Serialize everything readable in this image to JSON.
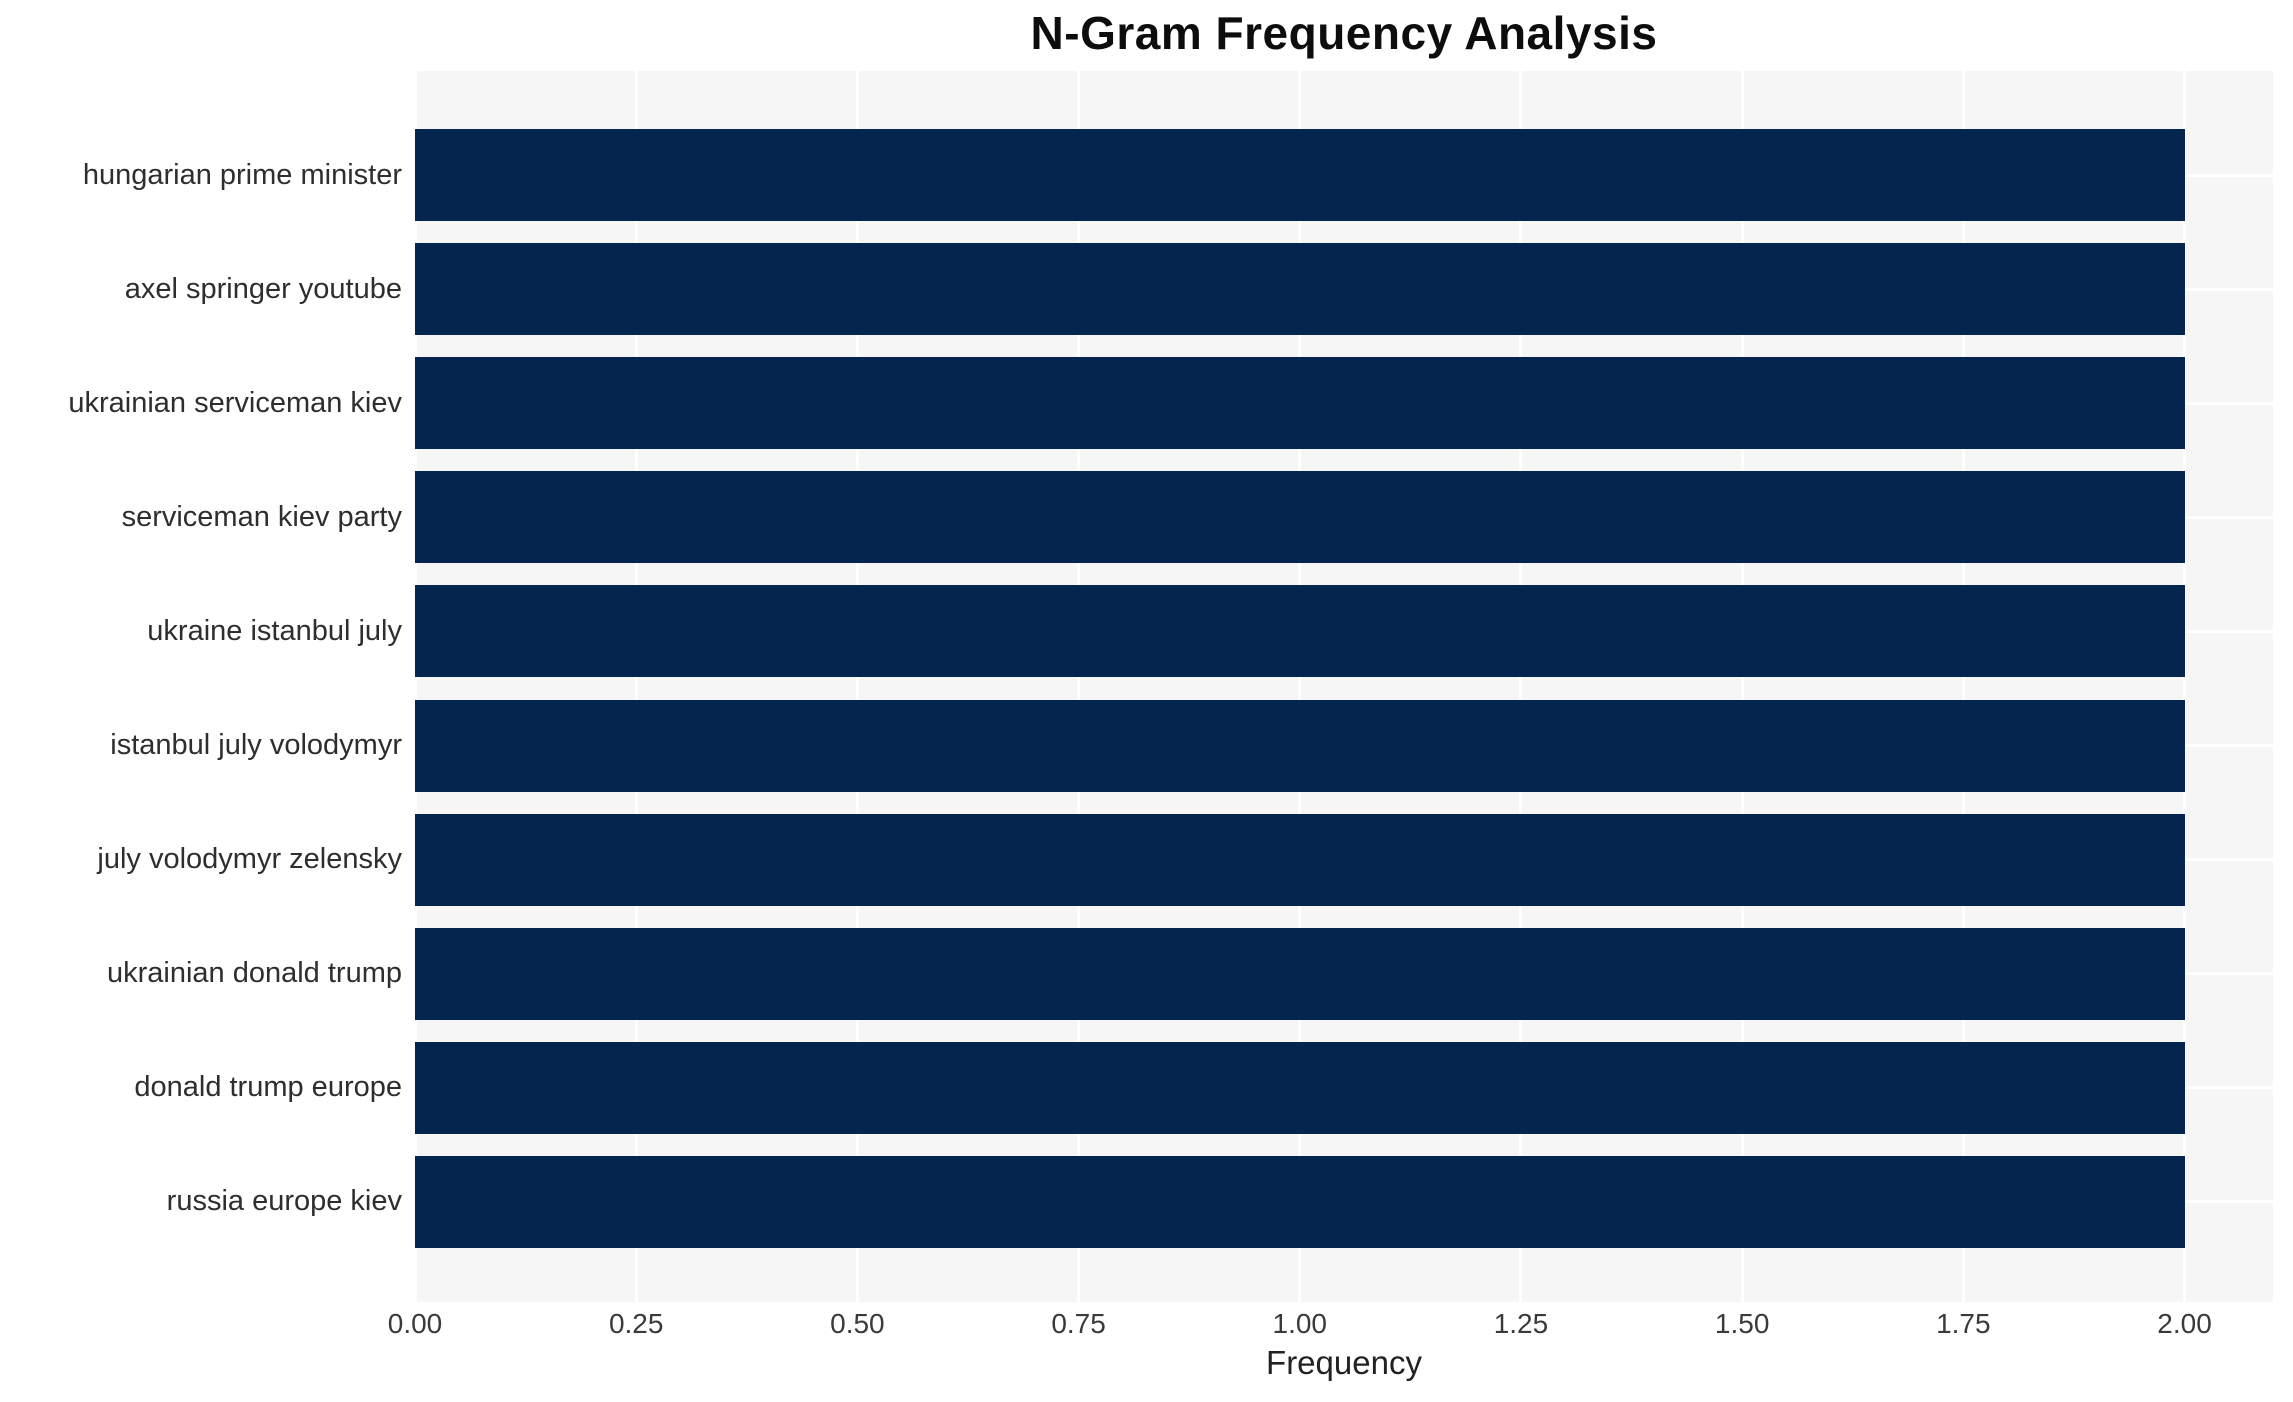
{
  "chart_data": {
    "type": "bar",
    "orientation": "horizontal",
    "title": "N-Gram Frequency Analysis",
    "xlabel": "Frequency",
    "ylabel": "",
    "categories": [
      "hungarian prime minister",
      "axel springer youtube",
      "ukrainian serviceman kiev",
      "serviceman kiev party",
      "ukraine istanbul july",
      "istanbul july volodymyr",
      "july volodymyr zelensky",
      "ukrainian donald trump",
      "donald trump europe",
      "russia europe kiev"
    ],
    "values": [
      2.0,
      2.0,
      2.0,
      2.0,
      2.0,
      2.0,
      2.0,
      2.0,
      2.0,
      2.0
    ],
    "xlim": [
      0,
      2.1
    ],
    "xticks": [
      {
        "value": 0.0,
        "label": "0.00"
      },
      {
        "value": 0.25,
        "label": "0.25"
      },
      {
        "value": 0.5,
        "label": "0.50"
      },
      {
        "value": 0.75,
        "label": "0.75"
      },
      {
        "value": 1.0,
        "label": "1.00"
      },
      {
        "value": 1.25,
        "label": "1.25"
      },
      {
        "value": 1.5,
        "label": "1.50"
      },
      {
        "value": 1.75,
        "label": "1.75"
      },
      {
        "value": 2.0,
        "label": "2.00"
      }
    ],
    "grid": true,
    "legend": false,
    "colors": {
      "bar": "#04264e",
      "plot_background": "#f6f6f7",
      "gridline": "#ffffff",
      "title_text": "#0d0d0d",
      "tick_text": "#3a3a3a",
      "category_text": "#2e2e2e"
    }
  }
}
